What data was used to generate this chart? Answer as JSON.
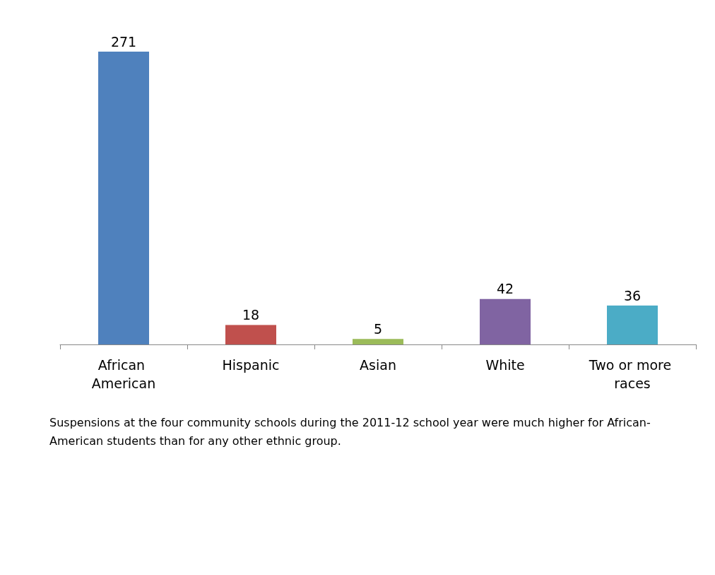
{
  "chart_data": {
    "type": "bar",
    "categories": [
      "African American",
      "Hispanic",
      "Asian",
      "White",
      "Two or more races"
    ],
    "values": [
      271,
      18,
      5,
      42,
      36
    ],
    "colors": [
      "#4f81bd",
      "#c0504d",
      "#9bbb59",
      "#8064a2",
      "#4bacc6"
    ],
    "data_labels": true,
    "annotations": [
      "Suspensions at the four community schools during the 2011-12 school year were much higher for African-American students than for any other ethnic group."
    ]
  }
}
